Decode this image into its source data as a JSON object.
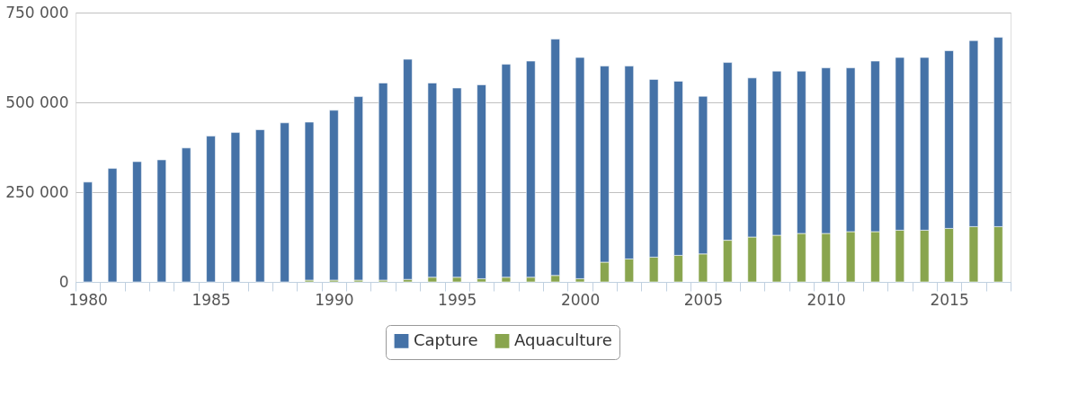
{
  "chart_data": {
    "type": "bar",
    "stacked": true,
    "categories": [
      "1980",
      null,
      null,
      null,
      null,
      "1985",
      null,
      null,
      null,
      null,
      "1990",
      null,
      null,
      null,
      null,
      "1995",
      null,
      null,
      null,
      null,
      "2000",
      null,
      null,
      null,
      null,
      "2005",
      null,
      null,
      null,
      null,
      "2010",
      null,
      null,
      null,
      null,
      "2015",
      null,
      null
    ],
    "series": [
      {
        "name": "Aquaculture",
        "color": "#89a54e",
        "values": [
          null,
          null,
          null,
          null,
          null,
          null,
          null,
          null,
          null,
          5000,
          5000,
          5000,
          5000,
          7000,
          13000,
          13000,
          9000,
          13000,
          13000,
          18000,
          9000,
          55000,
          64000,
          69000,
          74000,
          78000,
          116000,
          125000,
          130000,
          135000,
          135000,
          140000,
          140000,
          144000,
          144000,
          149000,
          154000,
          154000
        ]
      },
      {
        "name": "Capture",
        "color": "#4572a7",
        "values": [
          278000,
          316000,
          335000,
          340000,
          373000,
          406000,
          416000,
          424000,
          443000,
          440000,
          473000,
          511000,
          549000,
          613000,
          541000,
          527000,
          540000,
          593000,
          602000,
          658000,
          616000,
          546000,
          537000,
          495000,
          485000,
          439000,
          495000,
          443000,
          457000,
          452000,
          461000,
          456000,
          475000,
          481000,
          481000,
          495000,
          518000,
          527000
        ]
      }
    ],
    "ylim": [
      0,
      750000
    ],
    "yticks": [
      {
        "value": 0,
        "label": "0"
      },
      {
        "value": 250000,
        "label": "250 000"
      },
      {
        "value": 500000,
        "label": "500 000"
      },
      {
        "value": 750000,
        "label": "750 000"
      }
    ],
    "grid": "y",
    "legend": "bottom"
  }
}
